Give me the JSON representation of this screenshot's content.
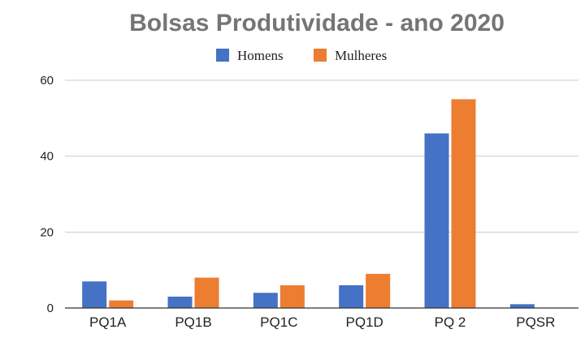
{
  "chart_data": {
    "type": "bar",
    "title": "Bolsas Produtividade - ano 2020",
    "categories": [
      "PQ1A",
      "PQ1B",
      "PQ1C",
      "PQ1D",
      "PQ 2",
      "PQSR"
    ],
    "series": [
      {
        "name": "Homens",
        "values": [
          7,
          3,
          4,
          6,
          46,
          1
        ],
        "color": "#4472C4"
      },
      {
        "name": "Mulheres",
        "values": [
          2,
          8,
          6,
          9,
          55,
          0
        ],
        "color": "#ED7D31"
      }
    ],
    "ylim": [
      0,
      60
    ],
    "yticks": [
      0,
      20,
      40,
      60
    ],
    "grid": true,
    "legend": "top"
  }
}
